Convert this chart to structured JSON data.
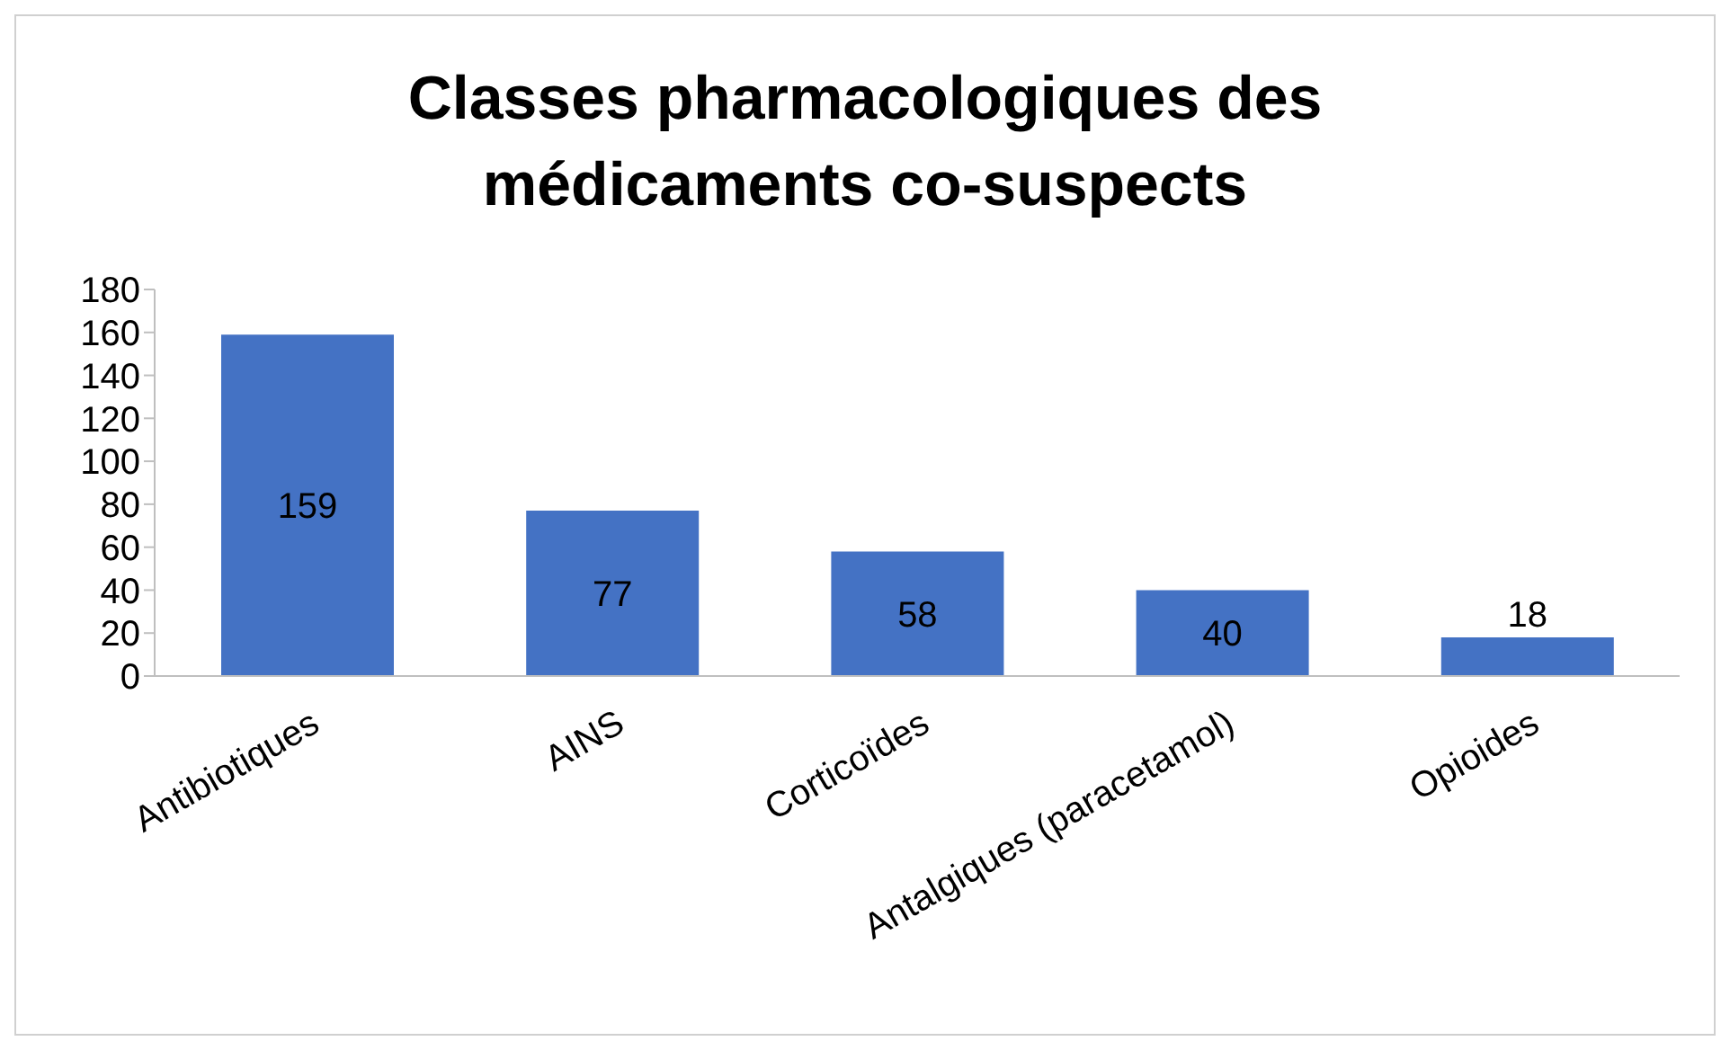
{
  "chart_data": {
    "type": "bar",
    "title": "Classes pharmacologiques des médicaments co-suspects",
    "categories": [
      "Antibiotiques",
      "AINS",
      "Corticoïdes",
      "Antalgiques (paracetamol)",
      "Opioides"
    ],
    "values": [
      159,
      77,
      58,
      40,
      18
    ],
    "color": "#4472c4",
    "ylim": [
      0,
      180
    ],
    "yticks": [
      0,
      20,
      40,
      60,
      80,
      100,
      120,
      140,
      160,
      180
    ],
    "grid": false,
    "data_labels": true,
    "legend": false
  }
}
